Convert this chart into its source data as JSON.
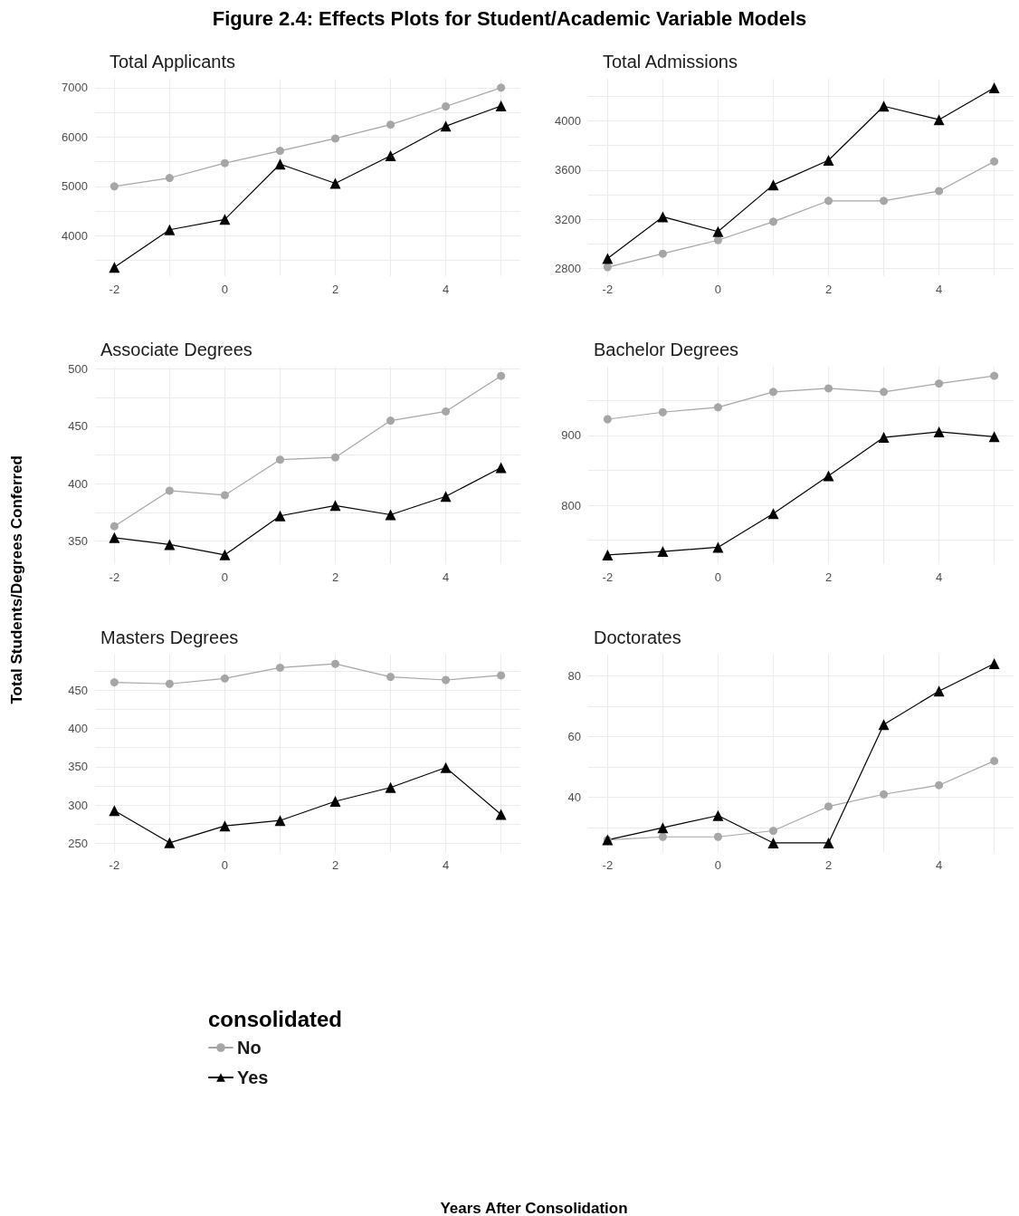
{
  "chart_data": [
    {
      "type": "line",
      "title": "Total Applicants",
      "annotations": [
        "Figure 2.4: Effects Plots for Student/Academic Variable Models"
      ],
      "xlabel": "Years After Consolidation",
      "legend": "bottom",
      "legend_title": "consolidated",
      "grid": true,
      "x": [
        -2,
        -1,
        0,
        1,
        2,
        3,
        4,
        5
      ],
      "xlim": [
        -2.35,
        5.35
      ],
      "xticks": [
        -2,
        {
          "value": -1,
          "label": null
        },
        0,
        {
          "value": 1,
          "label": null
        },
        2,
        {
          "value": 3,
          "label": null
        },
        4,
        {
          "value": 5,
          "label": null
        }
      ],
      "ylim": [
        3180,
        7180
      ],
      "yticks": [
        {
          "value": 3500,
          "label": null
        },
        4000,
        {
          "value": 4500,
          "label": null
        },
        5000,
        {
          "value": 5500,
          "label": null
        },
        6000,
        {
          "value": 6500,
          "label": null
        },
        7000
      ],
      "series": [
        {
          "name": "No",
          "color": "#a6a6a6",
          "marker": "circle",
          "values": [
            5000,
            5170,
            5470,
            5720,
            5970,
            6250,
            6620,
            7000
          ]
        },
        {
          "name": "Yes",
          "color": "#000000",
          "marker": "triangle",
          "values": [
            3360,
            4120,
            4330,
            5450,
            5060,
            5620,
            6220,
            6630
          ]
        }
      ]
    },
    {
      "type": "line",
      "title": "Total Admissions",
      "grid": true,
      "x": [
        -2,
        -1,
        0,
        1,
        2,
        3,
        4,
        5
      ],
      "xlim": [
        -2.35,
        5.35
      ],
      "xticks": [
        -2,
        {
          "value": -1,
          "label": null
        },
        0,
        {
          "value": 1,
          "label": null
        },
        2,
        {
          "value": 3,
          "label": null
        },
        4,
        {
          "value": 5,
          "label": null
        }
      ],
      "ylim": [
        2737,
        4343
      ],
      "yticks": [
        2800,
        {
          "value": 3000,
          "label": null
        },
        3200,
        {
          "value": 3400,
          "label": null
        },
        3600,
        {
          "value": 3800,
          "label": null
        },
        4000,
        {
          "value": 4200,
          "label": null
        }
      ],
      "series": [
        {
          "color": "#a6a6a6",
          "marker": "circle",
          "values": [
            2810,
            2920,
            3030,
            3180,
            3350,
            3350,
            3430,
            3670
          ]
        },
        {
          "color": "#000000",
          "marker": "triangle",
          "values": [
            2880,
            3220,
            3100,
            3480,
            3680,
            4120,
            4010,
            4270
          ]
        }
      ]
    },
    {
      "type": "line",
      "title": "Associate Degrees",
      "ylabel": "Total Students/Degrees Conferred",
      "grid": true,
      "x": [
        -2,
        -1,
        0,
        1,
        2,
        3,
        4,
        5
      ],
      "xlim": [
        -2.35,
        5.35
      ],
      "xticks": [
        -2,
        {
          "value": -1,
          "label": null
        },
        0,
        {
          "value": 1,
          "label": null
        },
        2,
        {
          "value": 3,
          "label": null
        },
        4,
        {
          "value": 5,
          "label": null
        }
      ],
      "ylim": [
        330,
        502
      ],
      "yticks": [
        350,
        {
          "value": 375,
          "label": null
        },
        400,
        {
          "value": 425,
          "label": null
        },
        450,
        {
          "value": 475,
          "label": null
        },
        500
      ],
      "series": [
        {
          "color": "#a6a6a6",
          "marker": "circle",
          "values": [
            363,
            394,
            390,
            421,
            423,
            455,
            463,
            494
          ]
        },
        {
          "color": "#000000",
          "marker": "triangle",
          "values": [
            353,
            347,
            338,
            372,
            381,
            373,
            389,
            414
          ]
        }
      ]
    },
    {
      "type": "line",
      "title": "Bachelor Degrees",
      "grid": true,
      "x": [
        -2,
        -1,
        0,
        1,
        2,
        3,
        4,
        5
      ],
      "xlim": [
        -2.35,
        5.35
      ],
      "xticks": [
        -2,
        {
          "value": -1,
          "label": null
        },
        0,
        {
          "value": 1,
          "label": null
        },
        2,
        {
          "value": 3,
          "label": null
        },
        4,
        {
          "value": 5,
          "label": null
        }
      ],
      "ylim": [
        716,
        998
      ],
      "yticks": [
        {
          "value": 750,
          "label": null
        },
        800,
        {
          "value": 850,
          "label": null
        },
        900,
        {
          "value": 950,
          "label": null
        }
      ],
      "series": [
        {
          "color": "#a6a6a6",
          "marker": "circle",
          "values": [
            923,
            933,
            940,
            962,
            967,
            962,
            974,
            985
          ]
        },
        {
          "color": "#000000",
          "marker": "triangle",
          "values": [
            729,
            734,
            740,
            788,
            842,
            897,
            905,
            898
          ]
        }
      ]
    },
    {
      "type": "line",
      "title": "Masters Degrees",
      "grid": true,
      "x": [
        -2,
        -1,
        0,
        1,
        2,
        3,
        4,
        5
      ],
      "xlim": [
        -2.35,
        5.35
      ],
      "xticks": [
        -2,
        {
          "value": -1,
          "label": null
        },
        0,
        {
          "value": 1,
          "label": null
        },
        2,
        {
          "value": 3,
          "label": null
        },
        4,
        {
          "value": 5,
          "label": null
        }
      ],
      "ylim": [
        239,
        496
      ],
      "yticks": [
        250,
        {
          "value": 275,
          "label": null
        },
        300,
        {
          "value": 325,
          "label": null
        },
        350,
        {
          "value": 375,
          "label": null
        },
        400,
        {
          "value": 425,
          "label": null
        },
        450,
        {
          "value": 475,
          "label": null
        }
      ],
      "series": [
        {
          "color": "#a6a6a6",
          "marker": "circle",
          "values": [
            460,
            458,
            465,
            479,
            484,
            467,
            463,
            469
          ]
        },
        {
          "color": "#000000",
          "marker": "triangle",
          "values": [
            293,
            251,
            273,
            280,
            305,
            323,
            349,
            288
          ]
        }
      ]
    },
    {
      "type": "line",
      "title": "Doctorates",
      "grid": true,
      "x": [
        -2,
        -1,
        0,
        1,
        2,
        3,
        4,
        5
      ],
      "xlim": [
        -2.35,
        5.35
      ],
      "xticks": [
        -2,
        {
          "value": -1,
          "label": null
        },
        0,
        {
          "value": 1,
          "label": null
        },
        2,
        {
          "value": 3,
          "label": null
        },
        4,
        {
          "value": 5,
          "label": null
        }
      ],
      "ylim": [
        22,
        87
      ],
      "yticks": [
        {
          "value": 30,
          "label": null
        },
        40,
        {
          "value": 50,
          "label": null
        },
        60,
        {
          "value": 70,
          "label": null
        },
        80
      ],
      "series": [
        {
          "color": "#a6a6a6",
          "marker": "circle",
          "values": [
            26,
            27,
            27,
            29,
            37,
            41,
            44,
            52
          ]
        },
        {
          "color": "#000000",
          "marker": "triangle",
          "values": [
            26,
            30,
            34,
            25,
            25,
            64,
            75,
            84
          ]
        }
      ]
    }
  ]
}
